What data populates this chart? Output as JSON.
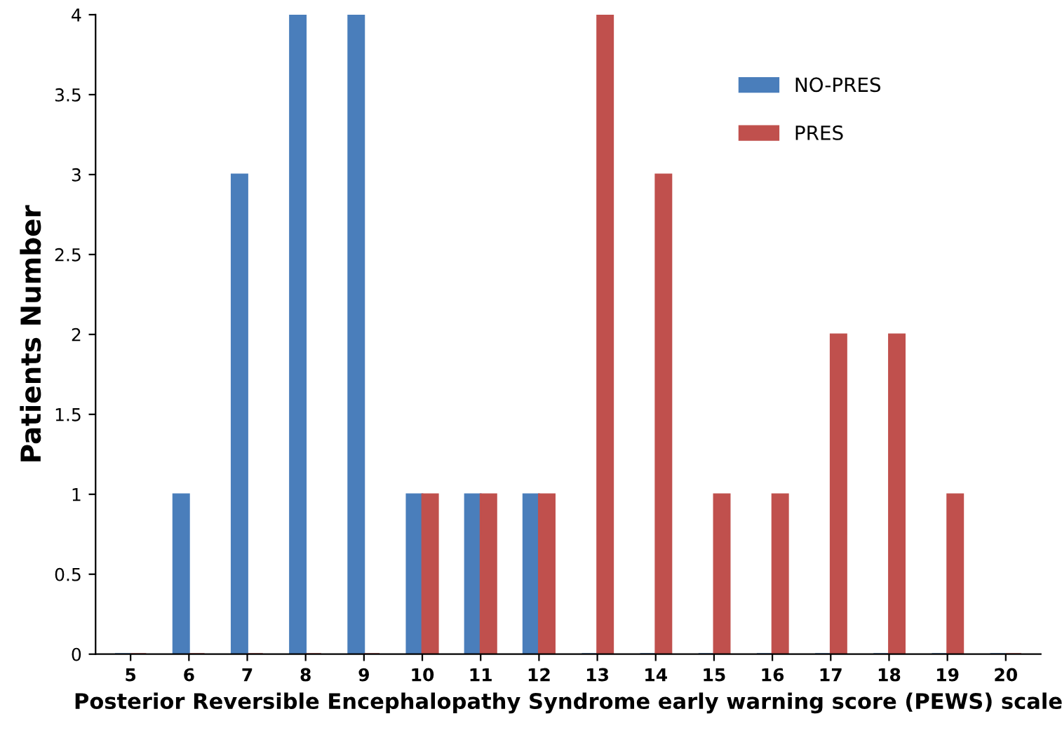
{
  "chart_data": {
    "type": "bar",
    "xlabel": "Posterior Reversible Encephalopathy Syndrome early warning score (PEWS) scale",
    "ylabel": "Patients Number",
    "categories": [
      "5",
      "6",
      "7",
      "8",
      "9",
      "10",
      "11",
      "12",
      "13",
      "14",
      "15",
      "16",
      "17",
      "18",
      "19",
      "20"
    ],
    "series": [
      {
        "name": "NO-PRES",
        "color": "#4a7ebb",
        "values": [
          0,
          1,
          3,
          4,
          4,
          1,
          1,
          1,
          0,
          0,
          0,
          0,
          0,
          0,
          0,
          0
        ]
      },
      {
        "name": "PRES",
        "color": "#c0504d",
        "values": [
          0,
          0,
          0,
          0,
          0,
          1,
          1,
          1,
          4,
          3,
          1,
          1,
          2,
          2,
          1,
          0
        ]
      }
    ],
    "ylim": [
      0,
      4
    ],
    "yticks": [
      0,
      0.5,
      1,
      1.5,
      2,
      2.5,
      3,
      3.5,
      4
    ],
    "grid": false,
    "legend": "top right"
  }
}
